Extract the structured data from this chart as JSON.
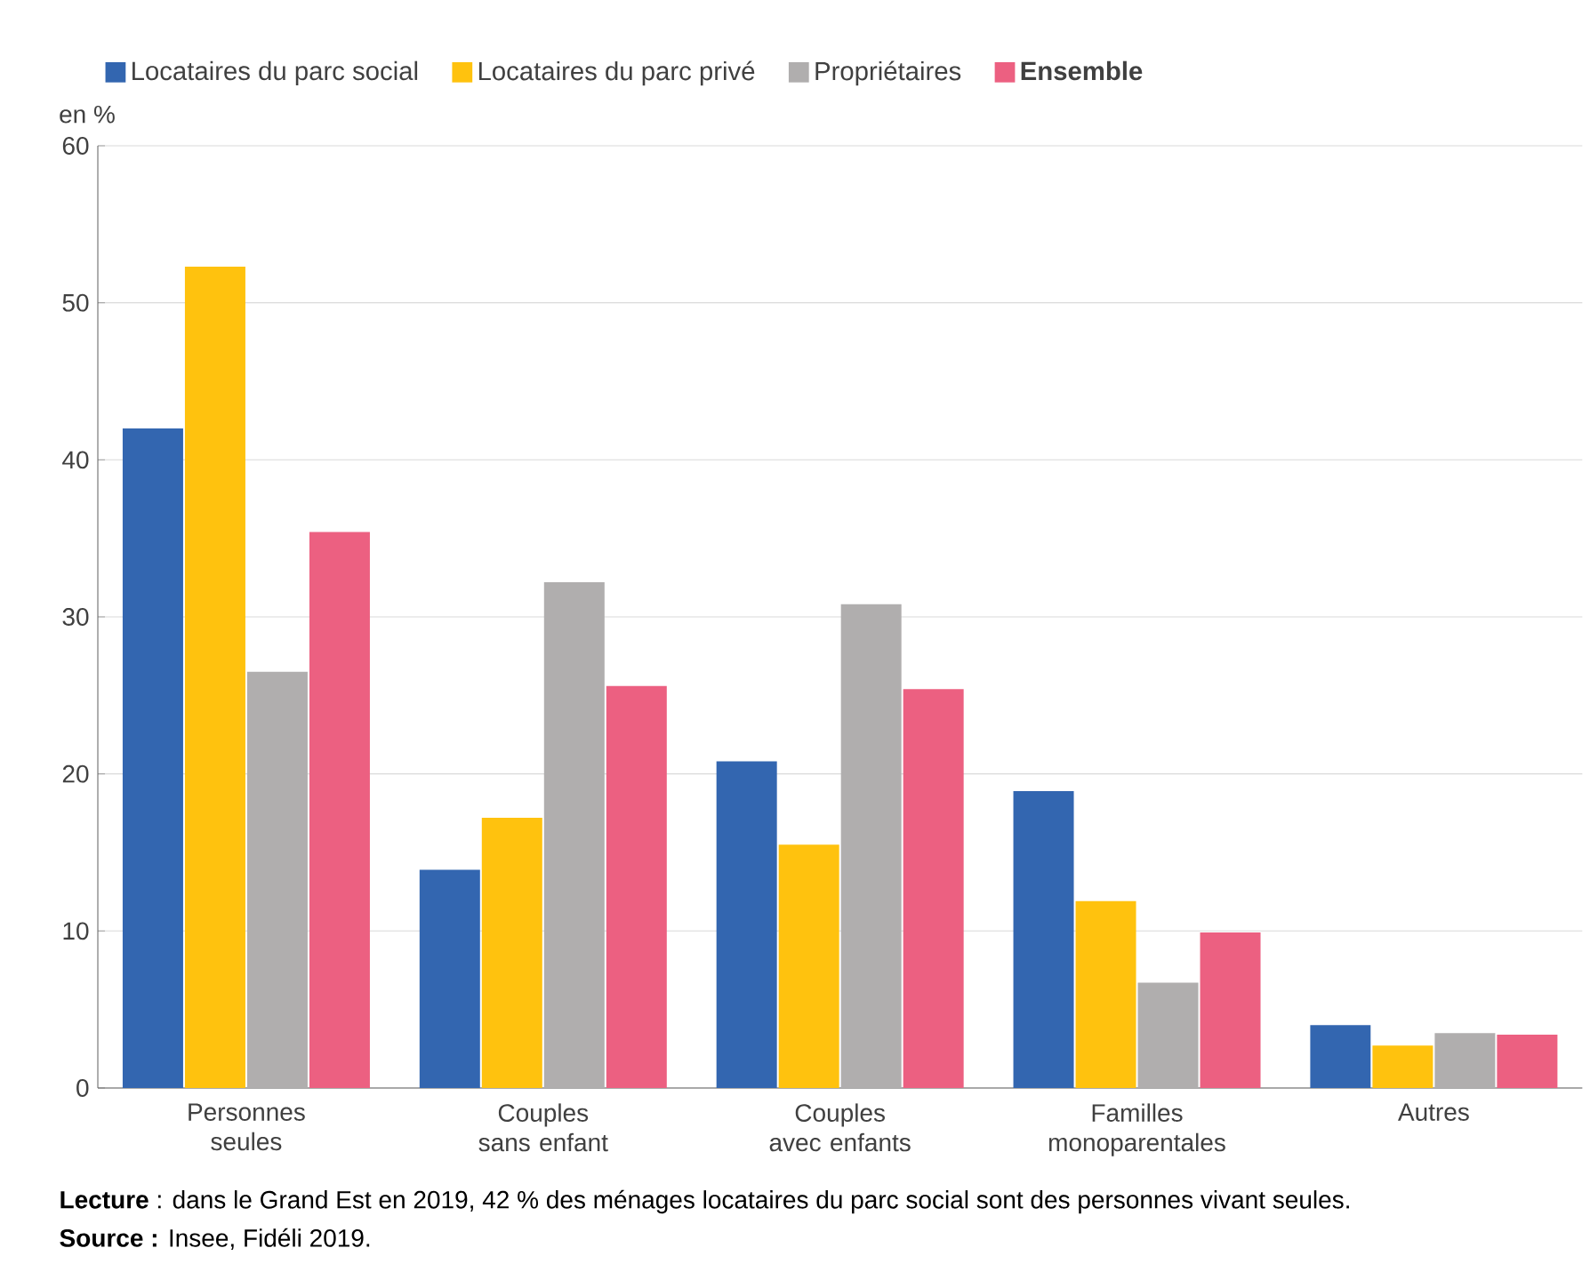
{
  "chart_data": {
    "type": "bar",
    "ylabel": "en %",
    "categories": [
      "Personnes seules",
      "Couples sans enfant",
      "Couples avec enfants",
      "Familles monoparentales",
      "Autres"
    ],
    "series": [
      {
        "name": "Locataires du parc social",
        "color": "#3366b0",
        "values": [
          42,
          13.9,
          20.8,
          18.9,
          4.0
        ]
      },
      {
        "name": "Locataires du parc privé",
        "color": "#ffc20e",
        "values": [
          52.3,
          17.2,
          15.5,
          11.9,
          2.7
        ]
      },
      {
        "name": "Propriétaires",
        "color": "#b0aeae",
        "values": [
          26.5,
          32.2,
          30.8,
          6.7,
          3.5
        ]
      },
      {
        "name": "**Ensemble**",
        "color": "#ec6081",
        "values": [
          35.4,
          25.6,
          25.4,
          9.9,
          3.4
        ]
      }
    ],
    "ylim": [
      0,
      60
    ],
    "yticks": [
      0,
      10,
      20,
      30,
      40,
      50,
      60
    ],
    "grid": "y",
    "legend": "top left",
    "annotations": [
      "**Lecture** : dans le Grand Est en 2019, 42 % des ménages locataires du parc social sont des personnes vivant seules.",
      "**Source :** Insee, Fidéli 2019."
    ]
  }
}
